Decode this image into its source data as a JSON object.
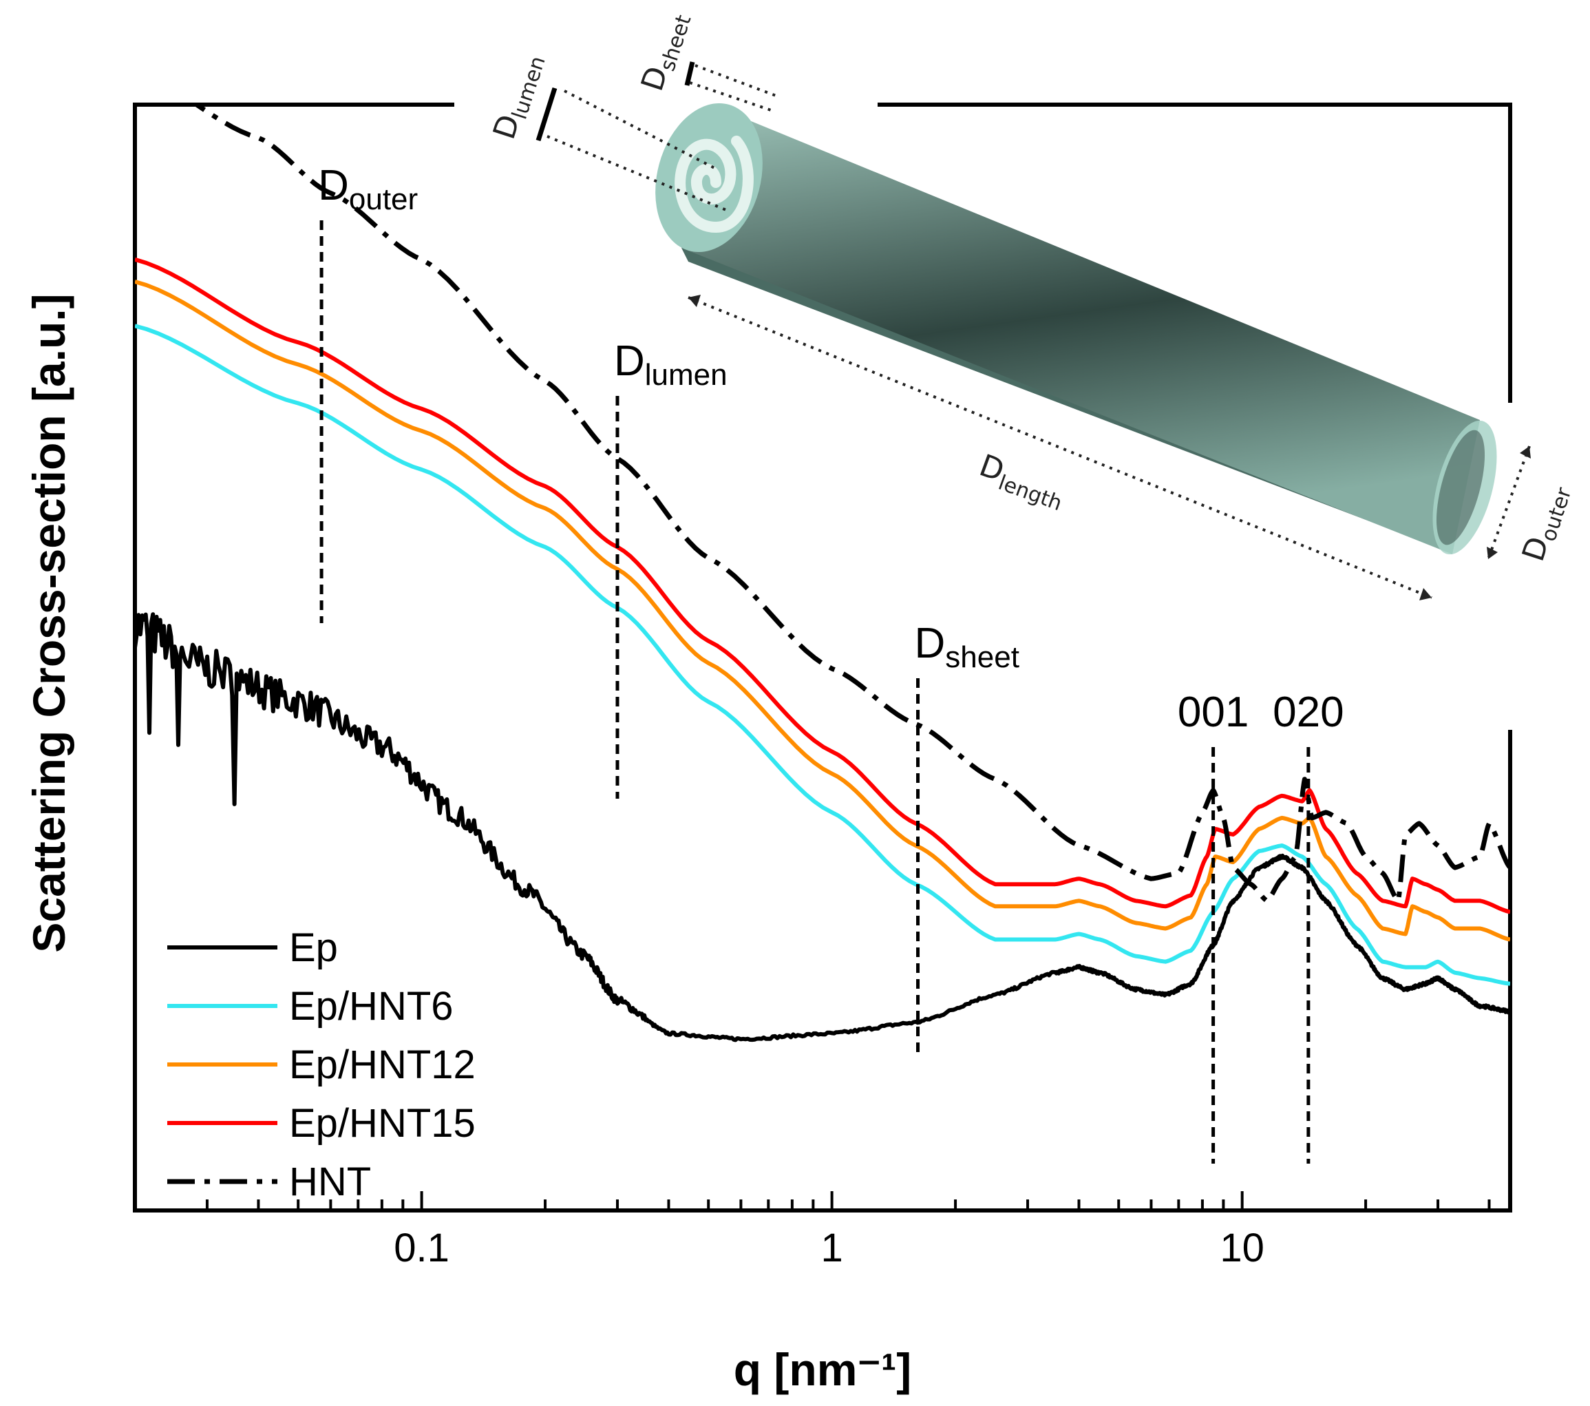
{
  "chart_data": {
    "type": "line",
    "xlabel": "q [nm⁻¹]",
    "ylabel": "Scattering Cross-section [a.u.]",
    "x_scale": "log",
    "xlim": [
      0.02,
      45
    ],
    "ylim": [
      0,
      10
    ],
    "y_tick_labels": "none",
    "x_ticks": [
      {
        "value": 0.1,
        "label": "0.1"
      },
      {
        "value": 1,
        "label": "1"
      },
      {
        "value": 10,
        "label": "10"
      }
    ],
    "legend": {
      "position": "lower-left",
      "entries": [
        "Ep",
        "Ep/HNT6",
        "Ep/HNT12",
        "Ep/HNT15",
        "HNT"
      ]
    },
    "series": [
      {
        "name": "Ep",
        "color": "#000000",
        "style": "solid",
        "noise": "high-at-low-q",
        "x": [
          0.02,
          0.03,
          0.05,
          0.08,
          0.12,
          0.18,
          0.25,
          0.3,
          0.4,
          0.6,
          1.0,
          1.6,
          2.5,
          3.5,
          4.0,
          4.5,
          5.5,
          6.5,
          7.5,
          8.5,
          9.5,
          11,
          12.5,
          14,
          16,
          19,
          22,
          25,
          28,
          30,
          33,
          38,
          45
        ],
        "y": [
          5.3,
          4.9,
          4.6,
          4.2,
          3.6,
          2.9,
          2.3,
          1.9,
          1.6,
          1.55,
          1.6,
          1.7,
          1.95,
          2.15,
          2.2,
          2.15,
          2.0,
          1.95,
          2.05,
          2.4,
          2.8,
          3.1,
          3.2,
          3.1,
          2.8,
          2.4,
          2.1,
          2.0,
          2.05,
          2.1,
          2.0,
          1.85,
          1.8
        ]
      },
      {
        "name": "Ep/HNT6",
        "color": "#33e6f0",
        "style": "solid",
        "x": [
          0.02,
          0.05,
          0.1,
          0.2,
          0.3,
          0.5,
          1.0,
          1.6,
          2.5,
          3.5,
          4.0,
          4.5,
          5.5,
          6.5,
          7.5,
          8.5,
          9.5,
          11,
          12.5,
          14,
          16,
          19,
          22,
          25,
          28,
          30,
          33,
          38,
          45
        ],
        "y": [
          8.0,
          7.3,
          6.7,
          6.0,
          5.45,
          4.6,
          3.6,
          2.95,
          2.45,
          2.45,
          2.5,
          2.45,
          2.3,
          2.25,
          2.35,
          2.7,
          3.0,
          3.25,
          3.3,
          3.2,
          2.95,
          2.55,
          2.25,
          2.2,
          2.2,
          2.25,
          2.15,
          2.1,
          2.05
        ]
      },
      {
        "name": "Ep/HNT12",
        "color": "#ff8c00",
        "style": "solid",
        "x": [
          0.02,
          0.05,
          0.1,
          0.2,
          0.3,
          0.5,
          1.0,
          1.6,
          2.5,
          3.5,
          4.0,
          4.5,
          5.5,
          6.5,
          7.5,
          8.2,
          8.6,
          9.5,
          11,
          12.5,
          14,
          14.6,
          16,
          19,
          22,
          25,
          26,
          28,
          30,
          33,
          38,
          45
        ],
        "y": [
          8.4,
          7.65,
          7.05,
          6.35,
          5.8,
          4.95,
          3.95,
          3.3,
          2.75,
          2.75,
          2.8,
          2.75,
          2.6,
          2.55,
          2.65,
          2.95,
          3.2,
          3.15,
          3.45,
          3.55,
          3.5,
          3.55,
          3.2,
          2.85,
          2.55,
          2.5,
          2.75,
          2.7,
          2.65,
          2.55,
          2.55,
          2.45
        ]
      },
      {
        "name": "Ep/HNT15",
        "color": "#ff0000",
        "style": "solid",
        "x": [
          0.02,
          0.05,
          0.1,
          0.2,
          0.3,
          0.5,
          1.0,
          1.6,
          2.5,
          3.5,
          4.0,
          4.5,
          5.5,
          6.5,
          7.5,
          8.2,
          8.6,
          9.5,
          11,
          12.5,
          14,
          14.6,
          16,
          19,
          22,
          25,
          26,
          28,
          30,
          33,
          38,
          45
        ],
        "y": [
          8.6,
          7.85,
          7.25,
          6.55,
          6.0,
          5.15,
          4.15,
          3.5,
          2.95,
          2.95,
          3.0,
          2.95,
          2.8,
          2.75,
          2.85,
          3.2,
          3.45,
          3.4,
          3.65,
          3.75,
          3.7,
          3.8,
          3.45,
          3.05,
          2.8,
          2.75,
          3.0,
          2.95,
          2.9,
          2.8,
          2.8,
          2.7
        ]
      },
      {
        "name": "HNT",
        "color": "#000000",
        "style": "dash-dot",
        "x": [
          0.02,
          0.04,
          0.06,
          0.1,
          0.2,
          0.3,
          0.5,
          1.0,
          1.6,
          2.5,
          4.0,
          6.0,
          7.0,
          8.0,
          8.5,
          9.0,
          9.5,
          10.5,
          11.5,
          12.5,
          13.5,
          14.2,
          14.8,
          16,
          18,
          20,
          22,
          24,
          25,
          27,
          30,
          33,
          38,
          40,
          45
        ],
        "y": [
          10.3,
          9.7,
          9.2,
          8.6,
          7.5,
          6.8,
          5.9,
          4.9,
          4.4,
          3.9,
          3.3,
          3.0,
          3.05,
          3.6,
          3.8,
          3.55,
          3.1,
          2.95,
          2.8,
          3.0,
          3.2,
          3.9,
          3.55,
          3.6,
          3.5,
          3.2,
          3.05,
          2.8,
          3.4,
          3.5,
          3.3,
          3.1,
          3.2,
          3.5,
          3.1
        ]
      }
    ],
    "markers": [
      {
        "label": "D",
        "sub": "outer",
        "q": 0.057
      },
      {
        "label": "D",
        "sub": "lumen",
        "q": 0.3
      },
      {
        "label": "D",
        "sub": "sheet",
        "q": 1.62
      },
      {
        "label": "001",
        "sub": "",
        "q": 8.5
      },
      {
        "label": "020",
        "sub": "",
        "q": 14.5
      }
    ]
  },
  "diagram": {
    "labels": {
      "lumen": {
        "main": "D",
        "sub": "lumen"
      },
      "sheet": {
        "main": "D",
        "sub": "sheet"
      },
      "length": {
        "main": "D",
        "sub": "length"
      },
      "outer": {
        "main": "D",
        "sub": "outer"
      }
    },
    "colors": {
      "tube_light": "#a8d4c8",
      "tube_mid": "#5f8a80",
      "tube_dark": "#2b403b"
    }
  }
}
